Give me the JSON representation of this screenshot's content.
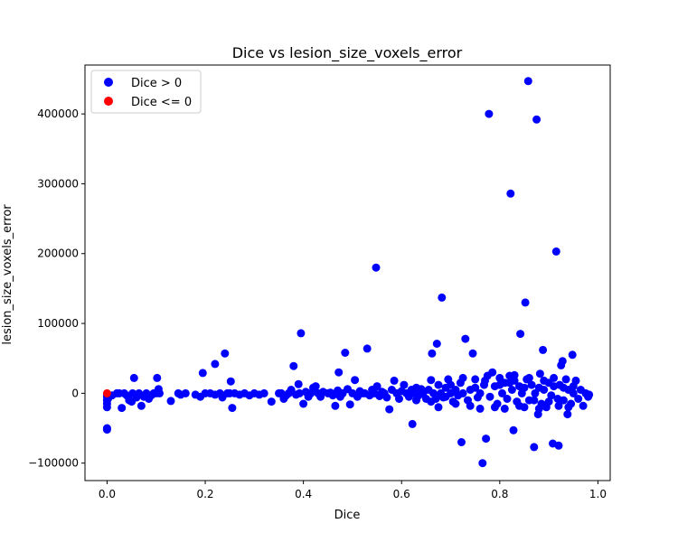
{
  "chart_data": {
    "type": "scatter",
    "title": "Dice vs lesion_size_voxels_error",
    "xlabel": "Dice",
    "ylabel": "lesion_size_voxels_error",
    "xlim": [
      -0.045,
      1.025
    ],
    "ylim": [
      -125000,
      470000
    ],
    "xticks": [
      0.0,
      0.2,
      0.4,
      0.6,
      0.8,
      1.0
    ],
    "xtick_labels": [
      "0.0",
      "0.2",
      "0.4",
      "0.6",
      "0.8",
      "1.0"
    ],
    "yticks": [
      -100000,
      0,
      100000,
      200000,
      300000,
      400000
    ],
    "ytick_labels": [
      "−100000",
      "0",
      "100000",
      "200000",
      "300000",
      "400000"
    ],
    "grid": false,
    "legend_position": "top-left",
    "series": [
      {
        "name": "Dice > 0",
        "color": "#0000ff",
        "points": [
          [
            0.0,
            -50000
          ],
          [
            0.0,
            -52000
          ],
          [
            0.0,
            -20000
          ],
          [
            0.0,
            -15000
          ],
          [
            0.0,
            -10000
          ],
          [
            0.0,
            -5000
          ],
          [
            0.0,
            -2000
          ],
          [
            0.002,
            -8000
          ],
          [
            0.01,
            -3000
          ],
          [
            0.02,
            0
          ],
          [
            0.025,
            0
          ],
          [
            0.03,
            -21000
          ],
          [
            0.035,
            0
          ],
          [
            0.04,
            -3000
          ],
          [
            0.045,
            -10000
          ],
          [
            0.05,
            -12000
          ],
          [
            0.052,
            0
          ],
          [
            0.055,
            22000
          ],
          [
            0.06,
            -6000
          ],
          [
            0.065,
            0
          ],
          [
            0.07,
            -18000
          ],
          [
            0.075,
            -5000
          ],
          [
            0.08,
            0
          ],
          [
            0.085,
            -8000
          ],
          [
            0.09,
            -3000
          ],
          [
            0.095,
            0
          ],
          [
            0.1,
            0
          ],
          [
            0.102,
            22000
          ],
          [
            0.105,
            6000
          ],
          [
            0.107,
            0
          ],
          [
            0.13,
            -11000
          ],
          [
            0.145,
            0
          ],
          [
            0.15,
            -2000
          ],
          [
            0.16,
            0
          ],
          [
            0.18,
            -2000
          ],
          [
            0.19,
            -5000
          ],
          [
            0.195,
            29000
          ],
          [
            0.2,
            0
          ],
          [
            0.21,
            0
          ],
          [
            0.22,
            -2000
          ],
          [
            0.22,
            42000
          ],
          [
            0.23,
            0
          ],
          [
            0.235,
            -6000
          ],
          [
            0.24,
            57000
          ],
          [
            0.245,
            0
          ],
          [
            0.25,
            0
          ],
          [
            0.252,
            17000
          ],
          [
            0.255,
            -21000
          ],
          [
            0.26,
            0
          ],
          [
            0.27,
            -2000
          ],
          [
            0.28,
            0
          ],
          [
            0.29,
            -3000
          ],
          [
            0.3,
            0
          ],
          [
            0.31,
            -2000
          ],
          [
            0.32,
            0
          ],
          [
            0.335,
            -12000
          ],
          [
            0.35,
            0
          ],
          [
            0.355,
            0
          ],
          [
            0.36,
            -8000
          ],
          [
            0.365,
            -3000
          ],
          [
            0.37,
            0
          ],
          [
            0.375,
            5000
          ],
          [
            0.38,
            39000
          ],
          [
            0.385,
            -2000
          ],
          [
            0.39,
            13000
          ],
          [
            0.392,
            0
          ],
          [
            0.395,
            86000
          ],
          [
            0.4,
            -15000
          ],
          [
            0.405,
            2000
          ],
          [
            0.41,
            -5000
          ],
          [
            0.415,
            0
          ],
          [
            0.42,
            8000
          ],
          [
            0.425,
            10000
          ],
          [
            0.43,
            0
          ],
          [
            0.435,
            -5000
          ],
          [
            0.44,
            2000
          ],
          [
            0.45,
            0
          ],
          [
            0.455,
            1000
          ],
          [
            0.46,
            -3000
          ],
          [
            0.465,
            -18000
          ],
          [
            0.47,
            4000
          ],
          [
            0.472,
            30000
          ],
          [
            0.475,
            -5000
          ],
          [
            0.48,
            0
          ],
          [
            0.485,
            58000
          ],
          [
            0.49,
            6000
          ],
          [
            0.495,
            -16000
          ],
          [
            0.5,
            0
          ],
          [
            0.505,
            19000
          ],
          [
            0.51,
            -5000
          ],
          [
            0.515,
            3000
          ],
          [
            0.52,
            0
          ],
          [
            0.525,
            0
          ],
          [
            0.53,
            64000
          ],
          [
            0.535,
            -3000
          ],
          [
            0.54,
            5000
          ],
          [
            0.545,
            0
          ],
          [
            0.548,
            180000
          ],
          [
            0.55,
            10000
          ],
          [
            0.555,
            -4000
          ],
          [
            0.56,
            2000
          ],
          [
            0.565,
            0
          ],
          [
            0.57,
            -6000
          ],
          [
            0.575,
            -23000
          ],
          [
            0.58,
            5000
          ],
          [
            0.585,
            18000
          ],
          [
            0.59,
            0
          ],
          [
            0.595,
            -8000
          ],
          [
            0.6,
            3000
          ],
          [
            0.605,
            12000
          ],
          [
            0.61,
            0
          ],
          [
            0.615,
            -5000
          ],
          [
            0.62,
            5000
          ],
          [
            0.622,
            -44000
          ],
          [
            0.625,
            0
          ],
          [
            0.63,
            8000
          ],
          [
            0.635,
            -3000
          ],
          [
            0.64,
            0
          ],
          [
            0.645,
            2000
          ],
          [
            0.65,
            -8000
          ],
          [
            0.655,
            5000
          ],
          [
            0.66,
            19000
          ],
          [
            0.662,
            57000
          ],
          [
            0.665,
            0
          ],
          [
            0.67,
            -8000
          ],
          [
            0.672,
            71000
          ],
          [
            0.675,
            12000
          ],
          [
            0.68,
            0
          ],
          [
            0.682,
            137000
          ],
          [
            0.685,
            -6000
          ],
          [
            0.69,
            8000
          ],
          [
            0.695,
            20000
          ],
          [
            0.7,
            0
          ],
          [
            0.705,
            -12000
          ],
          [
            0.71,
            5000
          ],
          [
            0.715,
            -3000
          ],
          [
            0.72,
            15000
          ],
          [
            0.722,
            -70000
          ],
          [
            0.725,
            0
          ],
          [
            0.73,
            78000
          ],
          [
            0.735,
            -10000
          ],
          [
            0.74,
            5000
          ],
          [
            0.745,
            57000
          ],
          [
            0.75,
            20000
          ],
          [
            0.755,
            -6000
          ],
          [
            0.76,
            0
          ],
          [
            0.765,
            -100000
          ],
          [
            0.768,
            12000
          ],
          [
            0.772,
            -65000
          ],
          [
            0.775,
            25000
          ],
          [
            0.778,
            400000
          ],
          [
            0.78,
            -5000
          ],
          [
            0.785,
            30000
          ],
          [
            0.79,
            10000
          ],
          [
            0.795,
            -15000
          ],
          [
            0.8,
            22000
          ],
          [
            0.805,
            0
          ],
          [
            0.81,
            15000
          ],
          [
            0.815,
            -8000
          ],
          [
            0.82,
            25000
          ],
          [
            0.822,
            286000
          ],
          [
            0.825,
            5000
          ],
          [
            0.828,
            -53000
          ],
          [
            0.83,
            18000
          ],
          [
            0.835,
            -12000
          ],
          [
            0.84,
            10000
          ],
          [
            0.842,
            85000
          ],
          [
            0.845,
            0
          ],
          [
            0.85,
            -20000
          ],
          [
            0.852,
            130000
          ],
          [
            0.855,
            20000
          ],
          [
            0.858,
            447000
          ],
          [
            0.86,
            -10000
          ],
          [
            0.865,
            12000
          ],
          [
            0.87,
            -77000
          ],
          [
            0.872,
            0
          ],
          [
            0.875,
            392000
          ],
          [
            0.878,
            -30000
          ],
          [
            0.88,
            8000
          ],
          [
            0.882,
            28000
          ],
          [
            0.885,
            -15000
          ],
          [
            0.888,
            62000
          ],
          [
            0.89,
            5000
          ],
          [
            0.895,
            -20000
          ],
          [
            0.9,
            15000
          ],
          [
            0.905,
            -3000
          ],
          [
            0.908,
            -72000
          ],
          [
            0.91,
            10000
          ],
          [
            0.915,
            203000
          ],
          [
            0.918,
            -8000
          ],
          [
            0.92,
            -75000
          ],
          [
            0.922,
            12000
          ],
          [
            0.925,
            40000
          ],
          [
            0.928,
            46000
          ],
          [
            0.93,
            -10000
          ],
          [
            0.935,
            20000
          ],
          [
            0.938,
            -30000
          ],
          [
            0.94,
            5000
          ],
          [
            0.945,
            -15000
          ],
          [
            0.948,
            55000
          ],
          [
            0.95,
            0
          ],
          [
            0.955,
            18000
          ],
          [
            0.96,
            -8000
          ],
          [
            0.965,
            5000
          ],
          [
            0.97,
            -18000
          ],
          [
            0.975,
            0
          ],
          [
            0.98,
            -5000
          ],
          [
            0.982,
            -2000
          ],
          [
            0.63,
            -10000
          ],
          [
            0.64,
            6000
          ],
          [
            0.66,
            -12000
          ],
          [
            0.675,
            -20000
          ],
          [
            0.69,
            -5000
          ],
          [
            0.7,
            12000
          ],
          [
            0.71,
            -15000
          ],
          [
            0.725,
            22000
          ],
          [
            0.74,
            -18000
          ],
          [
            0.75,
            8000
          ],
          [
            0.76,
            -22000
          ],
          [
            0.77,
            18000
          ],
          [
            0.79,
            -20000
          ],
          [
            0.8,
            12000
          ],
          [
            0.81,
            -22000
          ],
          [
            0.82,
            15000
          ],
          [
            0.83,
            26000
          ],
          [
            0.84,
            -18000
          ],
          [
            0.85,
            8000
          ],
          [
            0.86,
            22000
          ],
          [
            0.87,
            -10000
          ],
          [
            0.88,
            -22000
          ],
          [
            0.89,
            18000
          ],
          [
            0.9,
            -12000
          ],
          [
            0.91,
            22000
          ],
          [
            0.92,
            -18000
          ],
          [
            0.93,
            8000
          ],
          [
            0.94,
            -20000
          ],
          [
            0.95,
            10000
          ]
        ]
      },
      {
        "name": "Dice <= 0",
        "color": "#ff0000",
        "points": [
          [
            0.0,
            0
          ]
        ]
      }
    ]
  }
}
